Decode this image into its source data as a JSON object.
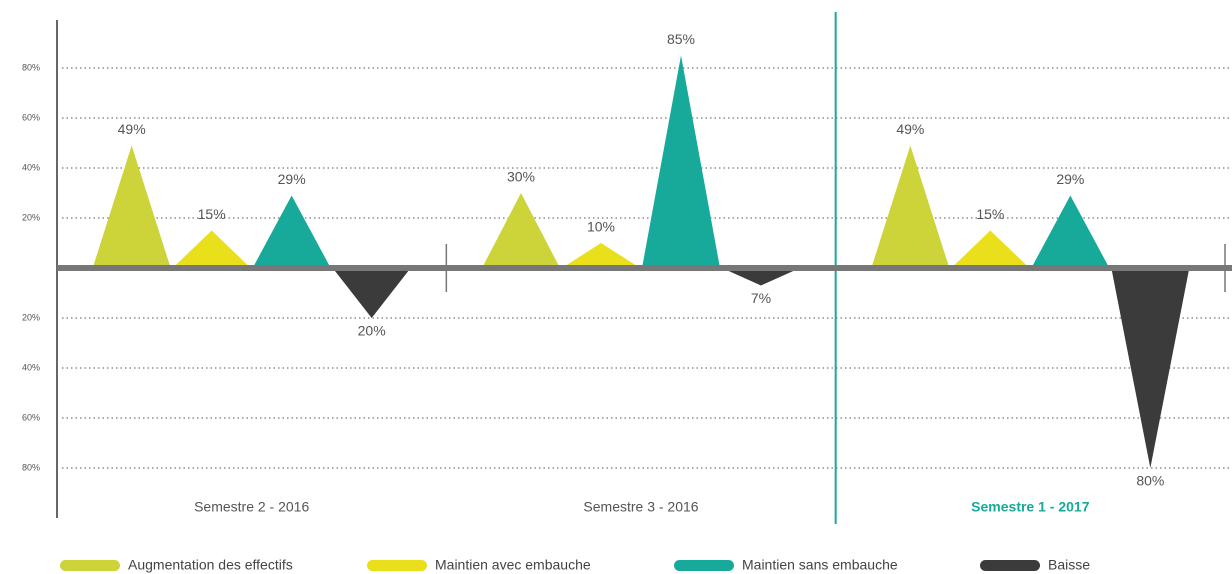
{
  "chart_data": {
    "type": "bar",
    "categories": [
      "Semestre 2 - 2016",
      "Semestre 3 - 2016",
      "Semestre 1 - 2017"
    ],
    "series": [
      {
        "name": "Augmentation des effectifs",
        "color": "#cdd43a",
        "values": [
          49,
          30,
          49
        ],
        "value_labels": [
          "49%",
          "30%",
          "49%"
        ]
      },
      {
        "name": "Maintien avec embauche",
        "color": "#e9df1b",
        "values": [
          15,
          10,
          15
        ],
        "value_labels": [
          "15%",
          "10%",
          "15%"
        ]
      },
      {
        "name": "Maintien sans embauche",
        "color": "#17a99a",
        "values": [
          29,
          85,
          29
        ],
        "value_labels": [
          "29%",
          "85%",
          "29%"
        ]
      },
      {
        "name": "Baisse",
        "color": "#3b3b3b",
        "values": [
          -20,
          -7,
          -80
        ],
        "value_labels": [
          "20%",
          "7%",
          "80%"
        ]
      }
    ],
    "ylim": [
      -100,
      100
    ],
    "yticks": [
      {
        "value": 80,
        "label": "80%"
      },
      {
        "value": 60,
        "label": "60%"
      },
      {
        "value": 40,
        "label": "40%"
      },
      {
        "value": 20,
        "label": "20%"
      },
      {
        "value": -20,
        "label": "20%"
      },
      {
        "value": -40,
        "label": "40%"
      },
      {
        "value": -60,
        "label": "60%"
      },
      {
        "value": -80,
        "label": "80%"
      }
    ],
    "grid": true,
    "legend": "bottom"
  }
}
